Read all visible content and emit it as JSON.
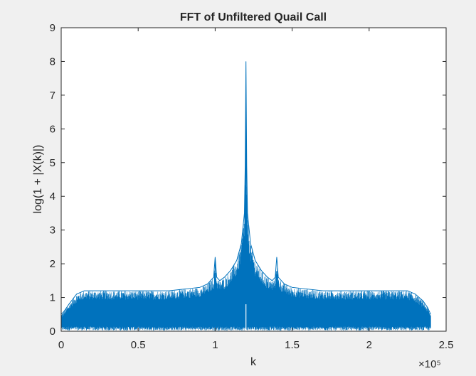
{
  "chart_data": {
    "type": "line",
    "title": "FFT of Unfiltered Quail Call",
    "xlabel": "k",
    "ylabel": "log(1 + |X(k)|)",
    "xlim": [
      0,
      2.5
    ],
    "ylim": [
      0,
      9
    ],
    "x_scale_multiplier": "×10⁵",
    "x_ticks": [
      0,
      0.5,
      1,
      1.5,
      2,
      2.5
    ],
    "x_tick_labels": [
      "0",
      "0.5",
      "1",
      "1.5",
      "2",
      "2.5"
    ],
    "y_ticks": [
      0,
      1,
      2,
      3,
      4,
      5,
      6,
      7,
      8,
      9
    ],
    "y_tick_labels": [
      "0",
      "1",
      "2",
      "3",
      "4",
      "5",
      "6",
      "7",
      "8",
      "9"
    ],
    "grid": false,
    "series": [
      {
        "color": "#0072BD",
        "x": [
          0,
          0.02,
          0.05,
          0.1,
          0.15,
          0.2,
          0.3,
          0.4,
          0.5,
          0.6,
          0.7,
          0.8,
          0.9,
          0.95,
          0.99,
          1.0,
          1.01,
          1.03,
          1.06,
          1.1,
          1.14,
          1.17,
          1.19,
          1.195,
          1.2,
          1.205,
          1.21,
          1.23,
          1.26,
          1.3,
          1.34,
          1.37,
          1.39,
          1.4,
          1.41,
          1.45,
          1.5,
          1.6,
          1.7,
          1.8,
          1.9,
          2.0,
          2.1,
          2.2,
          2.25,
          2.3,
          2.35,
          2.38,
          2.4
        ],
        "y": [
          0.5,
          0.6,
          0.8,
          1.1,
          1.2,
          1.2,
          1.2,
          1.2,
          1.2,
          1.2,
          1.2,
          1.25,
          1.3,
          1.4,
          1.6,
          2.2,
          1.6,
          1.5,
          1.6,
          1.8,
          2.1,
          2.6,
          3.5,
          4.9,
          8.0,
          4.9,
          3.5,
          2.6,
          2.1,
          1.8,
          1.6,
          1.5,
          1.6,
          2.2,
          1.6,
          1.4,
          1.3,
          1.25,
          1.2,
          1.2,
          1.2,
          1.2,
          1.2,
          1.2,
          1.2,
          1.1,
          0.9,
          0.7,
          0.5
        ]
      }
    ]
  }
}
